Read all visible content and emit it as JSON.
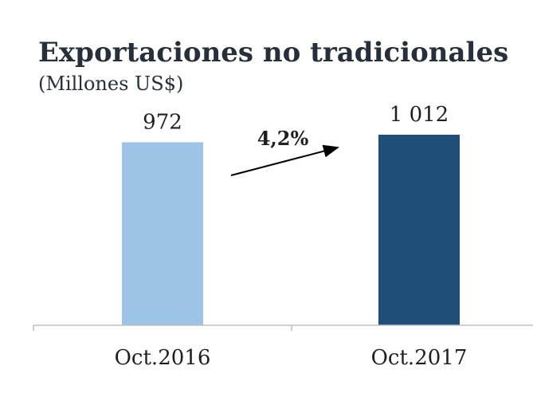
{
  "chart_data": {
    "type": "bar",
    "title": "Exportaciones no tradicionales",
    "subtitle": "(Millones US$)",
    "categories": [
      "Oct.2016",
      "Oct.2017"
    ],
    "values": [
      972,
      1012
    ],
    "value_labels": [
      "972",
      "1 012"
    ],
    "colors": [
      "#9dc3e6",
      "#1f4e79"
    ],
    "annotation": "4,2%",
    "ylim": [
      0,
      1050
    ],
    "xlabel": "",
    "ylabel": ""
  }
}
